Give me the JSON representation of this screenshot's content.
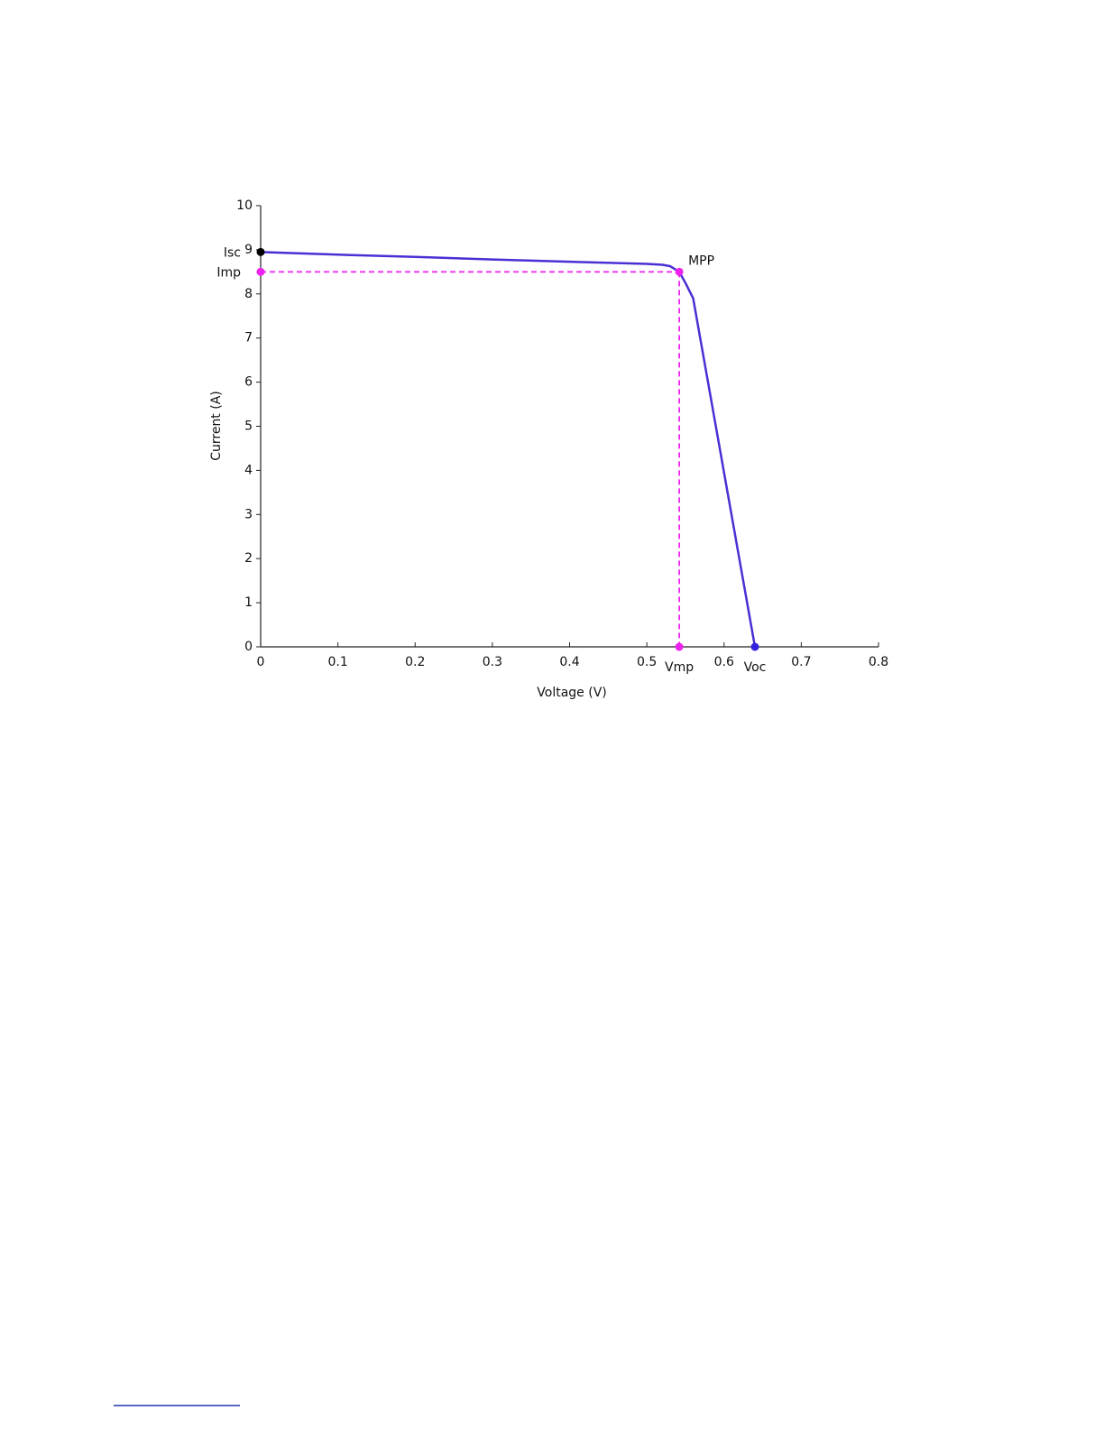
{
  "chart_data": {
    "type": "line",
    "x_label": "Voltage (V)",
    "y_label": "Current (A)",
    "x": [
      0,
      0.1,
      0.2,
      0.3,
      0.4,
      0.5,
      0.52,
      0.53,
      0.542,
      0.55,
      0.56,
      0.6,
      0.64
    ],
    "series": [
      {
        "color": "#4a2fd4",
        "values": [
          8.95,
          8.89,
          8.84,
          8.78,
          8.73,
          8.68,
          8.66,
          8.63,
          8.5,
          8.25,
          7.9,
          3.95,
          0
        ]
      }
    ],
    "points": [
      {
        "label": "Isc",
        "x": 0,
        "y": 8.95,
        "color": "#000000"
      },
      {
        "label": "Imp",
        "x": 0,
        "y": 8.5,
        "color": "#ee22ee"
      },
      {
        "label": "MPP",
        "x": 0.542,
        "y": 8.5,
        "color": "#ee22ee"
      },
      {
        "label": "Vmp",
        "x": 0.542,
        "y": 0,
        "color": "#ee22ee"
      },
      {
        "label": "Voc",
        "x": 0.64,
        "y": 0,
        "color": "#3322dd"
      }
    ],
    "guide_color": "#ee22ee",
    "xlim": [
      0,
      0.8
    ],
    "xticks": [
      0,
      0.1,
      0.2,
      0.3,
      0.4,
      0.5,
      0.6,
      0.7,
      0.8
    ],
    "ylim": [
      0,
      10
    ],
    "yticks": [
      0,
      1,
      2,
      3,
      4,
      5,
      6,
      7,
      8,
      9,
      10
    ],
    "grid": false
  }
}
